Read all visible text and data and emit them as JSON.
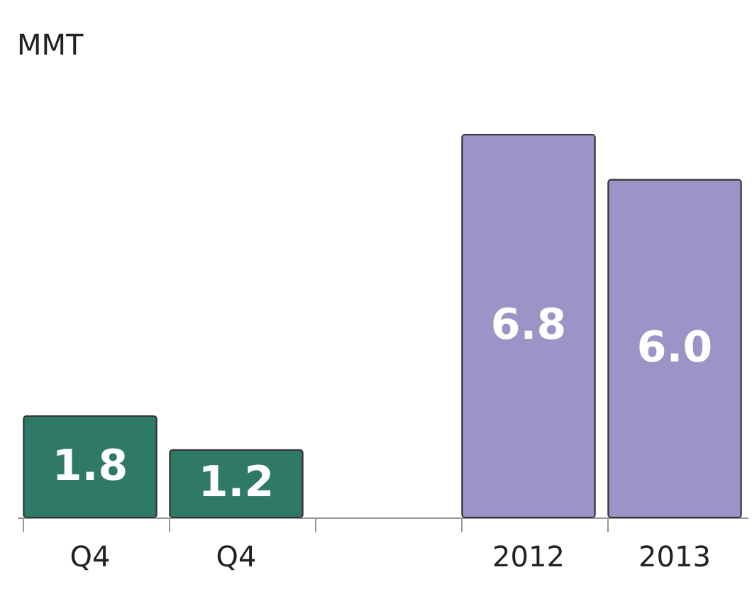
{
  "chart_data": {
    "type": "bar",
    "ylabel": "MMT",
    "categories": [
      "Q4",
      "Q4",
      null,
      "2012",
      "2013"
    ],
    "values": [
      1.8,
      1.2,
      null,
      6.8,
      6.0
    ],
    "colors": [
      "#2f7a66",
      "#2f7a66",
      "#9d93c6",
      "#9d93c6",
      "#9d93c6"
    ],
    "value_labels": [
      "1.8",
      "1.2",
      null,
      "6.8",
      "6.0"
    ]
  }
}
